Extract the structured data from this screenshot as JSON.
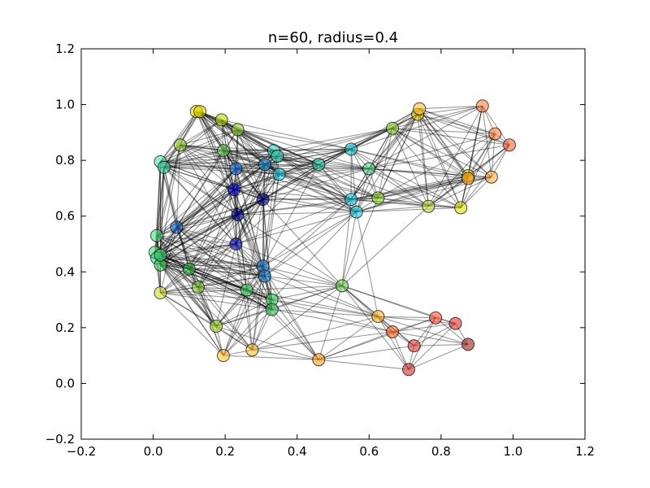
{
  "chart_data": {
    "type": "scatter",
    "subtype": "random-geometric-graph",
    "title": "n=60, radius=0.4",
    "xlabel": "",
    "ylabel": "",
    "xlim": [
      -0.2,
      1.2
    ],
    "ylim": [
      -0.2,
      1.2
    ],
    "xticks": [
      -0.2,
      0.0,
      0.2,
      0.4,
      0.6,
      0.8,
      1.0,
      1.2
    ],
    "yticks": [
      -0.2,
      0.0,
      0.2,
      0.4,
      0.6,
      0.8,
      1.0,
      1.2
    ],
    "xtick_labels": [
      "−0.2",
      "0.0",
      "0.2",
      "0.4",
      "0.6",
      "0.8",
      "1.0",
      "1.2"
    ],
    "ytick_labels": [
      "−0.2",
      "0.0",
      "0.2",
      "0.4",
      "0.6",
      "0.8",
      "1.0",
      "1.2"
    ],
    "grid": false,
    "edge_color": "#000000",
    "center_color": "#00008b",
    "nodes": [
      {
        "x": 0.12,
        "y": 0.975,
        "color": "#ffd700"
      },
      {
        "x": 0.13,
        "y": 0.975,
        "color": "#d4d400"
      },
      {
        "x": 0.19,
        "y": 0.945,
        "color": "#b8d400"
      },
      {
        "x": 0.235,
        "y": 0.91,
        "color": "#8fcf30"
      },
      {
        "x": 0.075,
        "y": 0.855,
        "color": "#8fcf30"
      },
      {
        "x": 0.195,
        "y": 0.835,
        "color": "#5dc34a"
      },
      {
        "x": 0.335,
        "y": 0.835,
        "color": "#30d0b0"
      },
      {
        "x": 0.345,
        "y": 0.815,
        "color": "#30d0b0"
      },
      {
        "x": 0.02,
        "y": 0.795,
        "color": "#50e0a0"
      },
      {
        "x": 0.03,
        "y": 0.775,
        "color": "#40d0a0"
      },
      {
        "x": 0.23,
        "y": 0.77,
        "color": "#1e6ee0"
      },
      {
        "x": 0.31,
        "y": 0.785,
        "color": "#1a8fcf"
      },
      {
        "x": 0.35,
        "y": 0.75,
        "color": "#1ec8e0"
      },
      {
        "x": 0.46,
        "y": 0.785,
        "color": "#20c0a0"
      },
      {
        "x": 0.55,
        "y": 0.84,
        "color": "#20c0d0"
      },
      {
        "x": 0.6,
        "y": 0.77,
        "color": "#50d080"
      },
      {
        "x": 0.665,
        "y": 0.915,
        "color": "#8fcf30"
      },
      {
        "x": 0.735,
        "y": 0.965,
        "color": "#e0c000"
      },
      {
        "x": 0.74,
        "y": 0.985,
        "color": "#ffc030"
      },
      {
        "x": 0.915,
        "y": 0.995,
        "color": "#ff8040"
      },
      {
        "x": 0.95,
        "y": 0.895,
        "color": "#ff8040"
      },
      {
        "x": 0.99,
        "y": 0.855,
        "color": "#ff6030"
      },
      {
        "x": 0.875,
        "y": 0.745,
        "color": "#e0c000"
      },
      {
        "x": 0.875,
        "y": 0.735,
        "color": "#ffa020"
      },
      {
        "x": 0.94,
        "y": 0.74,
        "color": "#ffb040"
      },
      {
        "x": 0.225,
        "y": 0.695,
        "color": "#0000d0"
      },
      {
        "x": 0.305,
        "y": 0.66,
        "color": "#000080"
      },
      {
        "x": 0.235,
        "y": 0.605,
        "color": "#000090"
      },
      {
        "x": 0.55,
        "y": 0.66,
        "color": "#1ec8e0"
      },
      {
        "x": 0.565,
        "y": 0.615,
        "color": "#1ec8e0"
      },
      {
        "x": 0.625,
        "y": 0.665,
        "color": "#8fcf30"
      },
      {
        "x": 0.765,
        "y": 0.635,
        "color": "#c0e040"
      },
      {
        "x": 0.855,
        "y": 0.63,
        "color": "#e0e000"
      },
      {
        "x": 0.065,
        "y": 0.56,
        "color": "#1a60c0"
      },
      {
        "x": 0.01,
        "y": 0.53,
        "color": "#50e080"
      },
      {
        "x": 0.005,
        "y": 0.47,
        "color": "#50e080"
      },
      {
        "x": 0.01,
        "y": 0.45,
        "color": "#40d080"
      },
      {
        "x": 0.02,
        "y": 0.425,
        "color": "#40d060"
      },
      {
        "x": 0.23,
        "y": 0.5,
        "color": "#1010c0"
      },
      {
        "x": 0.1,
        "y": 0.41,
        "color": "#30b040"
      },
      {
        "x": 0.305,
        "y": 0.42,
        "color": "#1a80d0"
      },
      {
        "x": 0.31,
        "y": 0.385,
        "color": "#1a80d0"
      },
      {
        "x": 0.02,
        "y": 0.325,
        "color": "#d0e030"
      },
      {
        "x": 0.125,
        "y": 0.345,
        "color": "#80c030"
      },
      {
        "x": 0.26,
        "y": 0.335,
        "color": "#40d060"
      },
      {
        "x": 0.33,
        "y": 0.3,
        "color": "#40d060"
      },
      {
        "x": 0.33,
        "y": 0.265,
        "color": "#40c060"
      },
      {
        "x": 0.525,
        "y": 0.35,
        "color": "#70d050"
      },
      {
        "x": 0.175,
        "y": 0.205,
        "color": "#a0d020"
      },
      {
        "x": 0.625,
        "y": 0.24,
        "color": "#ffb020"
      },
      {
        "x": 0.785,
        "y": 0.235,
        "color": "#ff5030"
      },
      {
        "x": 0.84,
        "y": 0.215,
        "color": "#e03030"
      },
      {
        "x": 0.665,
        "y": 0.185,
        "color": "#ff6020"
      },
      {
        "x": 0.725,
        "y": 0.135,
        "color": "#e03030"
      },
      {
        "x": 0.875,
        "y": 0.14,
        "color": "#a02020"
      },
      {
        "x": 0.195,
        "y": 0.1,
        "color": "#ffc030"
      },
      {
        "x": 0.275,
        "y": 0.12,
        "color": "#ffc030"
      },
      {
        "x": 0.46,
        "y": 0.085,
        "color": "#ffa020"
      },
      {
        "x": 0.71,
        "y": 0.05,
        "color": "#d03030"
      },
      {
        "x": 0.02,
        "y": 0.46,
        "color": "#40d070"
      }
    ]
  }
}
